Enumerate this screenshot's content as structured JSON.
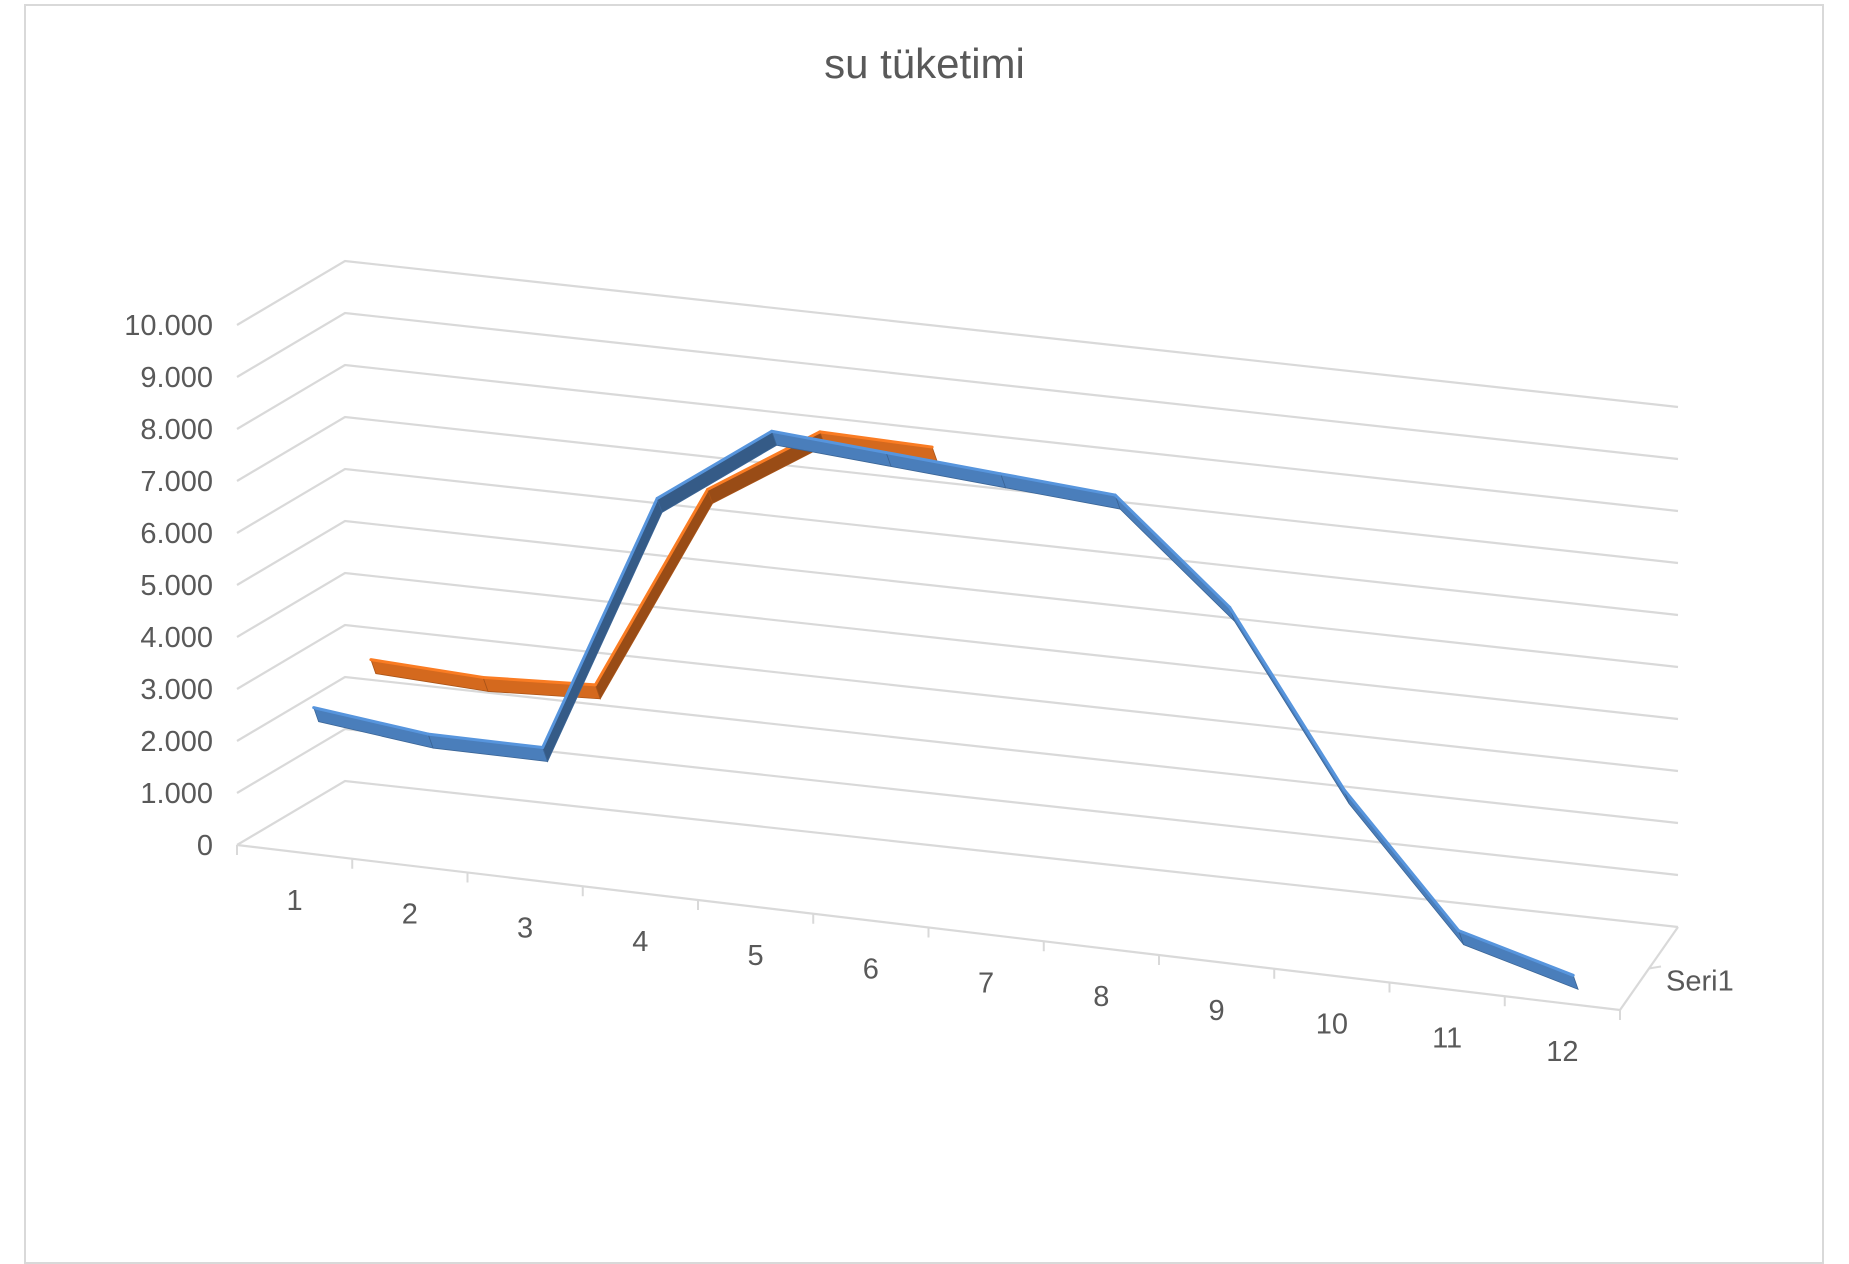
{
  "chart_data": {
    "type": "line",
    "variant": "3d-line",
    "title": "su tüketimi",
    "categories": [
      "1",
      "2",
      "3",
      "4",
      "5",
      "6",
      "7",
      "8",
      "9",
      "10",
      "11",
      "12"
    ],
    "y_tick_labels": [
      "0",
      "1.000",
      "2.000",
      "3.000",
      "4.000",
      "5.000",
      "6.000",
      "7.000",
      "8.000",
      "9.000",
      "10.000"
    ],
    "ylim": [
      0,
      10000
    ],
    "depth_label": "Seri1",
    "grid": true,
    "series": [
      {
        "name": "Seri1",
        "color": "#4a7ebb",
        "values": [
          2550,
          2300,
          2300,
          7350,
          8900,
          8750,
          8600,
          8450,
          6550,
          3300,
          850,
          250
        ]
      },
      {
        "color": "#d4691e",
        "values": [
          2800,
          2700,
          2800,
          6800,
          8150,
          8100,
          null,
          null,
          null,
          null,
          null,
          null
        ]
      }
    ]
  }
}
